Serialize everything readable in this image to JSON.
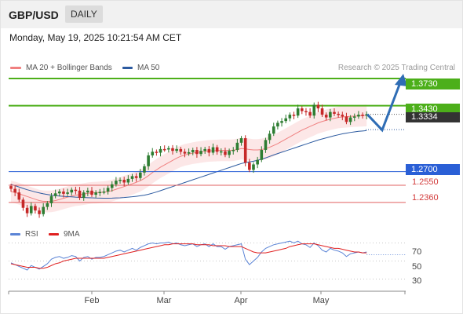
{
  "header": {
    "pair": "GBP/USD",
    "timeframe": "DAILY"
  },
  "datetime": "Monday, May 19, 2025 10:21:54 AM CET",
  "legend": {
    "ma20": {
      "label": "MA 20 + Bollinger Bands",
      "color": "#f08080"
    },
    "ma50": {
      "label": "MA 50",
      "color": "#2c5aa0"
    },
    "rsi": {
      "label": "RSI",
      "color": "#5b84d6"
    },
    "ma9": {
      "label": "9MA",
      "color": "#e02020"
    }
  },
  "credit": "Research © 2025 Trading Central",
  "levels": {
    "r2": "1.3730",
    "r1": "1.3430",
    "last": "1.3334",
    "pivot": "1.2700",
    "s1": "1.2550",
    "s2": "1.2360"
  },
  "rsi_ticks": [
    "70",
    "50",
    "30"
  ],
  "months": [
    "Feb",
    "Mar",
    "Apr",
    "May"
  ],
  "colors": {
    "up": "#2e7d32",
    "down": "#c62828",
    "resistance": "#4caf1a",
    "pivot": "#2a5fd6",
    "support": "#e06060",
    "arrow": "#2f6db5"
  },
  "chart_data": {
    "type": "candlestick",
    "price_axis_range": [
      1.215,
      1.38
    ],
    "rsi_axis_range": [
      20,
      80
    ],
    "ohlc_close": [
      1.251,
      1.247,
      1.239,
      1.23,
      1.224,
      1.232,
      1.227,
      1.223,
      1.231,
      1.235,
      1.243,
      1.246,
      1.248,
      1.2455,
      1.247,
      1.25,
      1.249,
      1.241,
      1.247,
      1.249,
      1.2445,
      1.247,
      1.2475,
      1.248,
      1.252,
      1.256,
      1.26,
      1.261,
      1.258,
      1.262,
      1.265,
      1.263,
      1.269,
      1.276,
      1.288,
      1.292,
      1.291,
      1.295,
      1.2945,
      1.296,
      1.293,
      1.295,
      1.292,
      1.29,
      1.2915,
      1.294,
      1.2895,
      1.293,
      1.295,
      1.291,
      1.297,
      1.292,
      1.2925,
      1.2885,
      1.293,
      1.294,
      1.302,
      1.307,
      1.28,
      1.272,
      1.278,
      1.283,
      1.294,
      1.305,
      1.312,
      1.32,
      1.324,
      1.326,
      1.329,
      1.333,
      1.332,
      1.34,
      1.337,
      1.336,
      1.332,
      1.344,
      1.34,
      1.333,
      1.33,
      1.336,
      1.334,
      1.333,
      1.331,
      1.325,
      1.33,
      1.331,
      1.333,
      1.332,
      1.3334
    ],
    "ma20": [
      1.248,
      1.247,
      1.2455,
      1.244,
      1.2425,
      1.241,
      1.2395,
      1.238,
      1.2372,
      1.237,
      1.2372,
      1.238,
      1.2392,
      1.2405,
      1.2418,
      1.243,
      1.244,
      1.2445,
      1.2452,
      1.246,
      1.2465,
      1.2468,
      1.2471,
      1.2474,
      1.248,
      1.249,
      1.2505,
      1.252,
      1.2535,
      1.255,
      1.2565,
      1.2582,
      1.26,
      1.2625,
      1.2655,
      1.269,
      1.272,
      1.275,
      1.2775,
      1.28,
      1.2825,
      1.285,
      1.287,
      1.2885,
      1.2895,
      1.2905,
      1.2912,
      1.2918,
      1.2925,
      1.293,
      1.2932,
      1.2934,
      1.2936,
      1.2936,
      1.2935,
      1.2938,
      1.2945,
      1.2955,
      1.2952,
      1.2945,
      1.294,
      1.294,
      1.2945,
      1.2955,
      1.297,
      1.299,
      1.301,
      1.3035,
      1.306,
      1.3085,
      1.311,
      1.3135,
      1.316,
      1.318,
      1.32,
      1.322,
      1.324,
      1.3255,
      1.3268,
      1.328,
      1.329,
      1.33,
      1.3305,
      1.3308,
      1.3312,
      1.3315,
      1.3318,
      1.332,
      1.3322
    ],
    "ma50": [
      1.256,
      1.2545,
      1.253,
      1.2515,
      1.25,
      1.2488,
      1.2475,
      1.2465,
      1.2455,
      1.2447,
      1.244,
      1.2435,
      1.243,
      1.2427,
      1.2424,
      1.2421,
      1.2418,
      1.2416,
      1.2414,
      1.2412,
      1.241,
      1.2408,
      1.2407,
      1.2406,
      1.2406,
      1.2407,
      1.2409,
      1.2411,
      1.2414,
      1.2418,
      1.2422,
      1.2427,
      1.2433,
      1.244,
      1.245,
      1.2462,
      1.2475,
      1.249,
      1.2505,
      1.252,
      1.2535,
      1.255,
      1.2565,
      1.258,
      1.2595,
      1.261,
      1.2625,
      1.264,
      1.2655,
      1.267,
      1.2685,
      1.27,
      1.2715,
      1.273,
      1.2745,
      1.276,
      1.2775,
      1.279,
      1.28,
      1.2808,
      1.2815,
      1.2825,
      1.2838,
      1.2852,
      1.2868,
      1.2885,
      1.29,
      1.2915,
      1.293,
      1.2945,
      1.296,
      1.2975,
      1.299,
      1.3005,
      1.302,
      1.3035,
      1.305,
      1.3062,
      1.3074,
      1.3086,
      1.3098,
      1.3108,
      1.3118,
      1.3126,
      1.3134,
      1.314,
      1.3146,
      1.315,
      1.3154
    ],
    "bb_width": 0.012,
    "forecast_path": [
      1.3334,
      1.316,
      1.373
    ],
    "rsi": [
      48,
      46,
      44,
      42,
      40,
      45,
      43,
      41,
      44,
      47,
      52,
      54,
      55,
      53,
      54,
      56,
      55,
      50,
      54,
      55,
      52,
      54,
      54,
      55,
      57,
      59,
      61,
      62,
      60,
      62,
      64,
      62,
      65,
      67,
      69,
      70,
      69,
      70,
      70,
      71,
      69,
      70,
      68,
      67,
      68,
      69,
      66,
      68,
      69,
      66,
      69,
      66,
      66,
      63,
      66,
      67,
      68,
      69,
      52,
      46,
      50,
      54,
      60,
      64,
      66,
      68,
      69,
      70,
      71,
      72,
      70,
      72,
      69,
      68,
      65,
      70,
      67,
      62,
      60,
      64,
      62,
      61,
      59,
      55,
      58,
      59,
      60,
      59,
      60
    ],
    "rsi_ma9": [
      47,
      46,
      45,
      44,
      43,
      43,
      43,
      42,
      42,
      43,
      45,
      47,
      48,
      50,
      51,
      52,
      53,
      53,
      53,
      53,
      53,
      53,
      53,
      53,
      54,
      55,
      56,
      57,
      58,
      59,
      60,
      61,
      62,
      63,
      64,
      65,
      66,
      67,
      68,
      68,
      69,
      69,
      69,
      69,
      69,
      69,
      68,
      68,
      68,
      68,
      67,
      67,
      67,
      67,
      66,
      66,
      66,
      66,
      64,
      62,
      60,
      59,
      59,
      59,
      60,
      61,
      62,
      63,
      64,
      66,
      67,
      68,
      69,
      69,
      69,
      69,
      68,
      67,
      66,
      65,
      64,
      64,
      63,
      62,
      61,
      60,
      60,
      59,
      59
    ]
  }
}
